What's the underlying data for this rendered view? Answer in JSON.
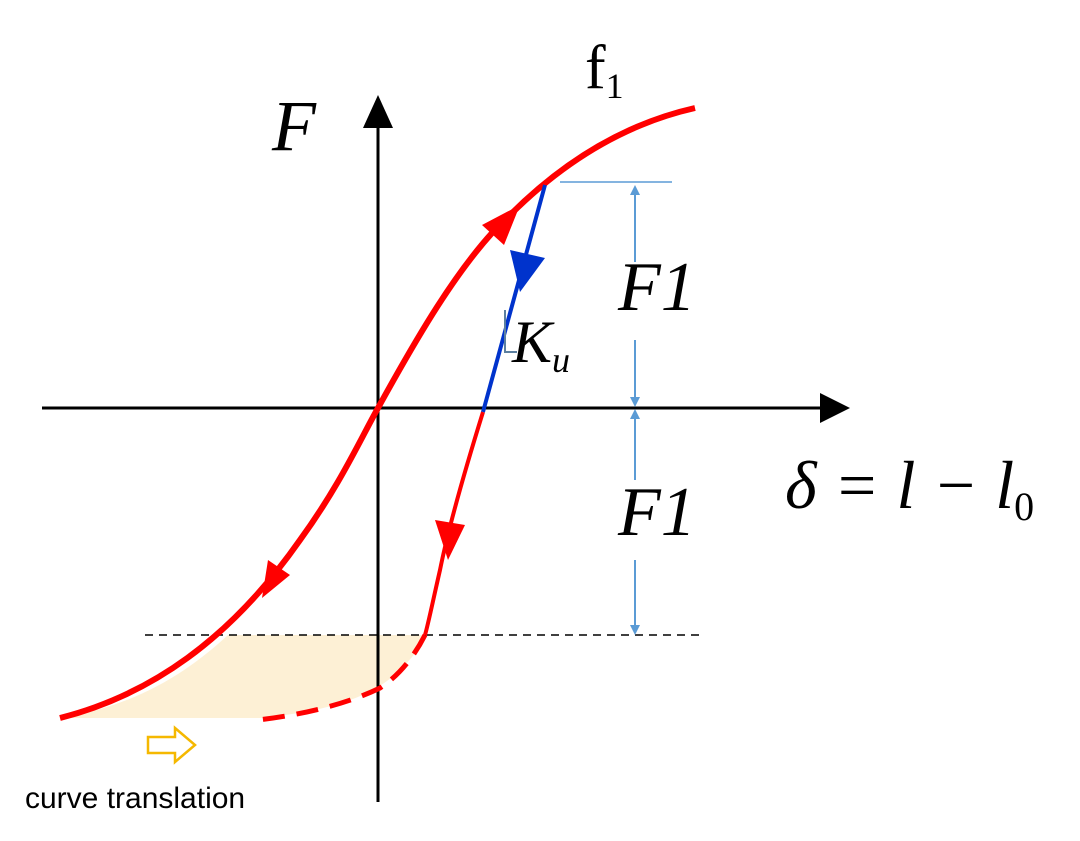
{
  "labels": {
    "curve": {
      "text": "f",
      "sub": "1"
    },
    "y_axis": "F",
    "x_axis": {
      "text": "δ = l − l",
      "sub": "0"
    },
    "stiffness": {
      "text": "K",
      "sub": "u"
    },
    "upper_force": "F1",
    "lower_force": "F1",
    "translation_note": "curve translation"
  }
}
